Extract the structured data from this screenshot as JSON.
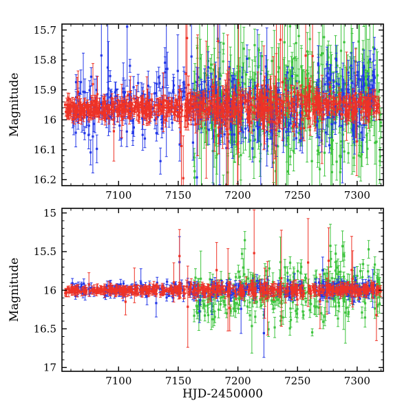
{
  "figure": {
    "xlabel": "HJD-2450000",
    "ylabel": "Magnitude",
    "background": "#ffffff",
    "frame_color": "#000000"
  },
  "chart_data": [
    {
      "type": "scatter",
      "panel": "top",
      "title": "",
      "ylabel": "Magnitude",
      "marker": "square",
      "error_bars": true,
      "xlim": [
        7052.5,
        7322
      ],
      "ylim": [
        15.68,
        16.22
      ],
      "magnitude_axis_inverted": true,
      "xticks": [
        7100,
        7150,
        7200,
        7250,
        7300
      ],
      "xtick_labels": [
        "7100",
        "7150",
        "7200",
        "7250",
        "7300"
      ],
      "x_minor_step": 10,
      "yticks": [
        15.7,
        15.8,
        15.9,
        16.0,
        16.1,
        16.2
      ],
      "ytick_labels": [
        "15.7",
        "15.8",
        "15.9",
        "16",
        "16.1",
        "16.2"
      ],
      "y_minor_step": 0.02,
      "series": [
        {
          "name": "green",
          "color": "#3ec43e",
          "segments": [
            {
              "x0": 7163,
              "x1": 7230,
              "n": 170,
              "b": 15.95,
              "j": 0.095,
              "e": 0.05,
              "of": 0.1,
              "om": 4,
              "oj": 0.05
            },
            {
              "x0": 7230,
              "x1": 7320,
              "n": 230,
              "b": 15.95,
              "j": 0.1,
              "e": 0.055,
              "of": 0.1,
              "om": 4,
              "oj": 0.05
            }
          ]
        },
        {
          "name": "blue",
          "color": "#2438e8",
          "segments": [
            {
              "x0": 7060,
              "x1": 7130,
              "n": 100,
              "b": 15.955,
              "j": 0.05,
              "e": 0.035,
              "of": 0.05,
              "om": 5,
              "oj": 0.04
            },
            {
              "x0": 7130,
              "x1": 7185,
              "n": 90,
              "b": 15.935,
              "j": 0.06,
              "e": 0.04,
              "of": 0.07,
              "om": 6,
              "oj": 0.05
            },
            {
              "x0": 7185,
              "x1": 7255,
              "n": 150,
              "b": 15.965,
              "j": 0.055,
              "e": 0.035,
              "of": 0.05,
              "om": 5,
              "oj": 0.04
            },
            {
              "x0": 7265,
              "x1": 7315,
              "n": 120,
              "b": 15.925,
              "j": 0.06,
              "e": 0.04,
              "of": 0.05,
              "om": 5,
              "oj": 0.04
            }
          ]
        },
        {
          "name": "red",
          "color": "#ee3226",
          "segments": [
            {
              "x0": 7055,
              "x1": 7150,
              "n": 300,
              "b": 15.963,
              "j": 0.016,
              "e": 0.018,
              "of": 0.02,
              "om": 4,
              "oj": 0.02
            },
            {
              "x0": 7150,
              "x1": 7205,
              "n": 170,
              "b": 15.955,
              "j": 0.028,
              "e": 0.025,
              "of": 0.08,
              "om": 7,
              "oj": 0.03
            },
            {
              "x0": 7205,
              "x1": 7265,
              "n": 160,
              "b": 15.95,
              "j": 0.032,
              "e": 0.03,
              "of": 0.1,
              "om": 7,
              "oj": 0.03
            },
            {
              "x0": 7265,
              "x1": 7320,
              "n": 150,
              "b": 15.952,
              "j": 0.02,
              "e": 0.02,
              "of": 0.05,
              "om": 5,
              "oj": 0.02
            }
          ]
        }
      ]
    },
    {
      "type": "scatter",
      "panel": "bottom",
      "title": "",
      "ylabel": "Magnitude",
      "marker": "square",
      "error_bars": true,
      "xlim": [
        7052.5,
        7322
      ],
      "ylim": [
        14.94,
        17.05
      ],
      "magnitude_axis_inverted": true,
      "xticks": [
        7100,
        7150,
        7200,
        7250,
        7300
      ],
      "xtick_labels": [
        "7100",
        "7150",
        "7200",
        "7250",
        "7300"
      ],
      "x_minor_step": 10,
      "yticks": [
        15.0,
        15.5,
        16.0,
        16.5,
        17.0
      ],
      "ytick_labels": [
        "15",
        "15.5",
        "16",
        "16.5",
        "17"
      ],
      "y_minor_step": 0.1,
      "series": [
        {
          "name": "green",
          "color": "#3ec43e",
          "segments": [
            {
              "x0": 7163,
              "x1": 7240,
              "n": 150,
              "b": 16.05,
              "j": 0.17,
              "e": 0.08,
              "of": 0.08,
              "om": 3,
              "oj": 0.2
            },
            {
              "x0": 7240,
              "x1": 7320,
              "n": 160,
              "b": 16.0,
              "j": 0.19,
              "e": 0.09,
              "of": 0.08,
              "om": 3,
              "oj": 0.25
            }
          ]
        },
        {
          "name": "blue",
          "color": "#2438e8",
          "segments": [
            {
              "x0": 7060,
              "x1": 7150,
              "n": 110,
              "b": 15.99,
              "j": 0.04,
              "e": 0.05,
              "of": 0.03,
              "om": 4,
              "oj": 0.08
            },
            {
              "x0": 7150,
              "x1": 7255,
              "n": 140,
              "b": 15.99,
              "j": 0.05,
              "e": 0.055,
              "of": 0.04,
              "om": 4,
              "oj": 0.1
            },
            {
              "x0": 7265,
              "x1": 7315,
              "n": 100,
              "b": 15.99,
              "j": 0.05,
              "e": 0.05,
              "of": 0.04,
              "om": 4,
              "oj": 0.08
            }
          ]
        },
        {
          "name": "red",
          "color": "#ee3226",
          "segments": [
            {
              "x0": 7055,
              "x1": 7150,
              "n": 210,
              "b": 16.0,
              "j": 0.022,
              "e": 0.04,
              "of": 0.02,
              "om": 5,
              "oj": 0.05
            },
            {
              "x0": 7150,
              "x1": 7260,
              "n": 190,
              "b": 16.0,
              "j": 0.04,
              "e": 0.06,
              "of": 0.07,
              "om": 7,
              "oj": 0.08
            },
            {
              "x0": 7260,
              "x1": 7320,
              "n": 130,
              "b": 16.0,
              "j": 0.03,
              "e": 0.05,
              "of": 0.06,
              "om": 6,
              "oj": 0.1
            }
          ]
        }
      ]
    }
  ]
}
